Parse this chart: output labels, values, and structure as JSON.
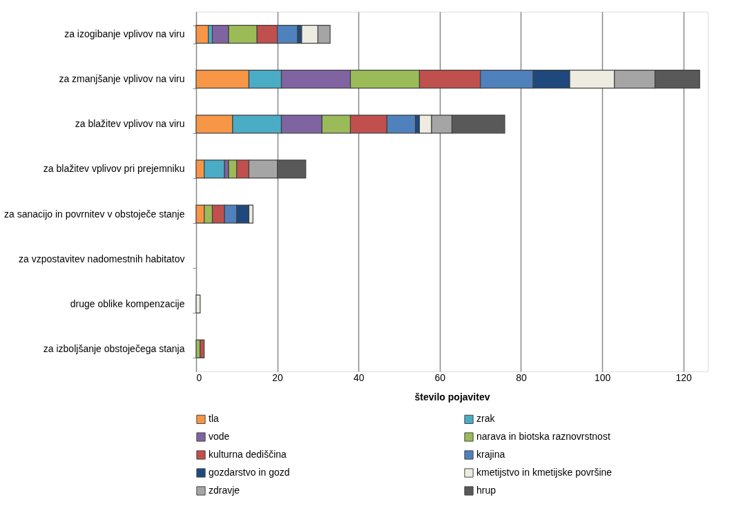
{
  "chart_data": {
    "type": "bar",
    "orientation": "horizontal",
    "stacked": true,
    "xlabel": "število pojavitev",
    "categories": [
      "za izogibanje vplivov na viru",
      "za zmanjšanje vplivov na viru",
      "za blažitev vplivov na viru",
      "za blažitev vplivov pri prejemniku",
      "za sanacijo in povrnitev v obstoječe stanje",
      "za vzpostavitev nadomestnih habitatov",
      "druge oblike kompenzacije",
      "za izboljšanje obstoječega stanja"
    ],
    "series": [
      {
        "name": "tla",
        "color": "#f79646",
        "values": [
          3,
          13,
          9,
          2,
          2,
          null,
          null,
          null
        ]
      },
      {
        "name": "zrak",
        "color": "#4bacc6",
        "values": [
          1,
          8,
          12,
          5,
          null,
          null,
          null,
          null
        ]
      },
      {
        "name": "vode",
        "color": "#8064a2",
        "values": [
          4,
          17,
          10,
          1,
          null,
          null,
          null,
          null
        ]
      },
      {
        "name": "narava in biotska raznovrstnost",
        "color": "#9bbb59",
        "values": [
          7,
          17,
          7,
          2,
          2,
          null,
          null,
          1
        ]
      },
      {
        "name": "kulturna dediščina",
        "color": "#c0504d",
        "values": [
          5,
          15,
          9,
          3,
          3,
          null,
          null,
          1
        ]
      },
      {
        "name": "krajina",
        "color": "#4f81bd",
        "values": [
          5,
          13,
          7,
          null,
          3,
          null,
          null,
          null
        ]
      },
      {
        "name": "gozdarstvo in gozd",
        "color": "#1f497d",
        "values": [
          1,
          9,
          1,
          null,
          3,
          null,
          null,
          null
        ]
      },
      {
        "name": "kmetijstvo in kmetijske površine",
        "color": "#eeece1",
        "values": [
          4,
          11,
          3,
          null,
          1,
          null,
          1,
          null
        ]
      },
      {
        "name": "zdravje",
        "color": "#a5a5a5",
        "values": [
          3,
          10,
          5,
          7,
          null,
          null,
          null,
          null
        ]
      },
      {
        "name": "hrup",
        "color": "#595959",
        "values": [
          null,
          11,
          13,
          7,
          null,
          null,
          null,
          null
        ]
      }
    ],
    "xlim": [
      0,
      126
    ],
    "xticks": [
      0,
      20,
      40,
      60,
      80,
      100,
      120
    ],
    "grid": "x",
    "legend": "bottom"
  }
}
